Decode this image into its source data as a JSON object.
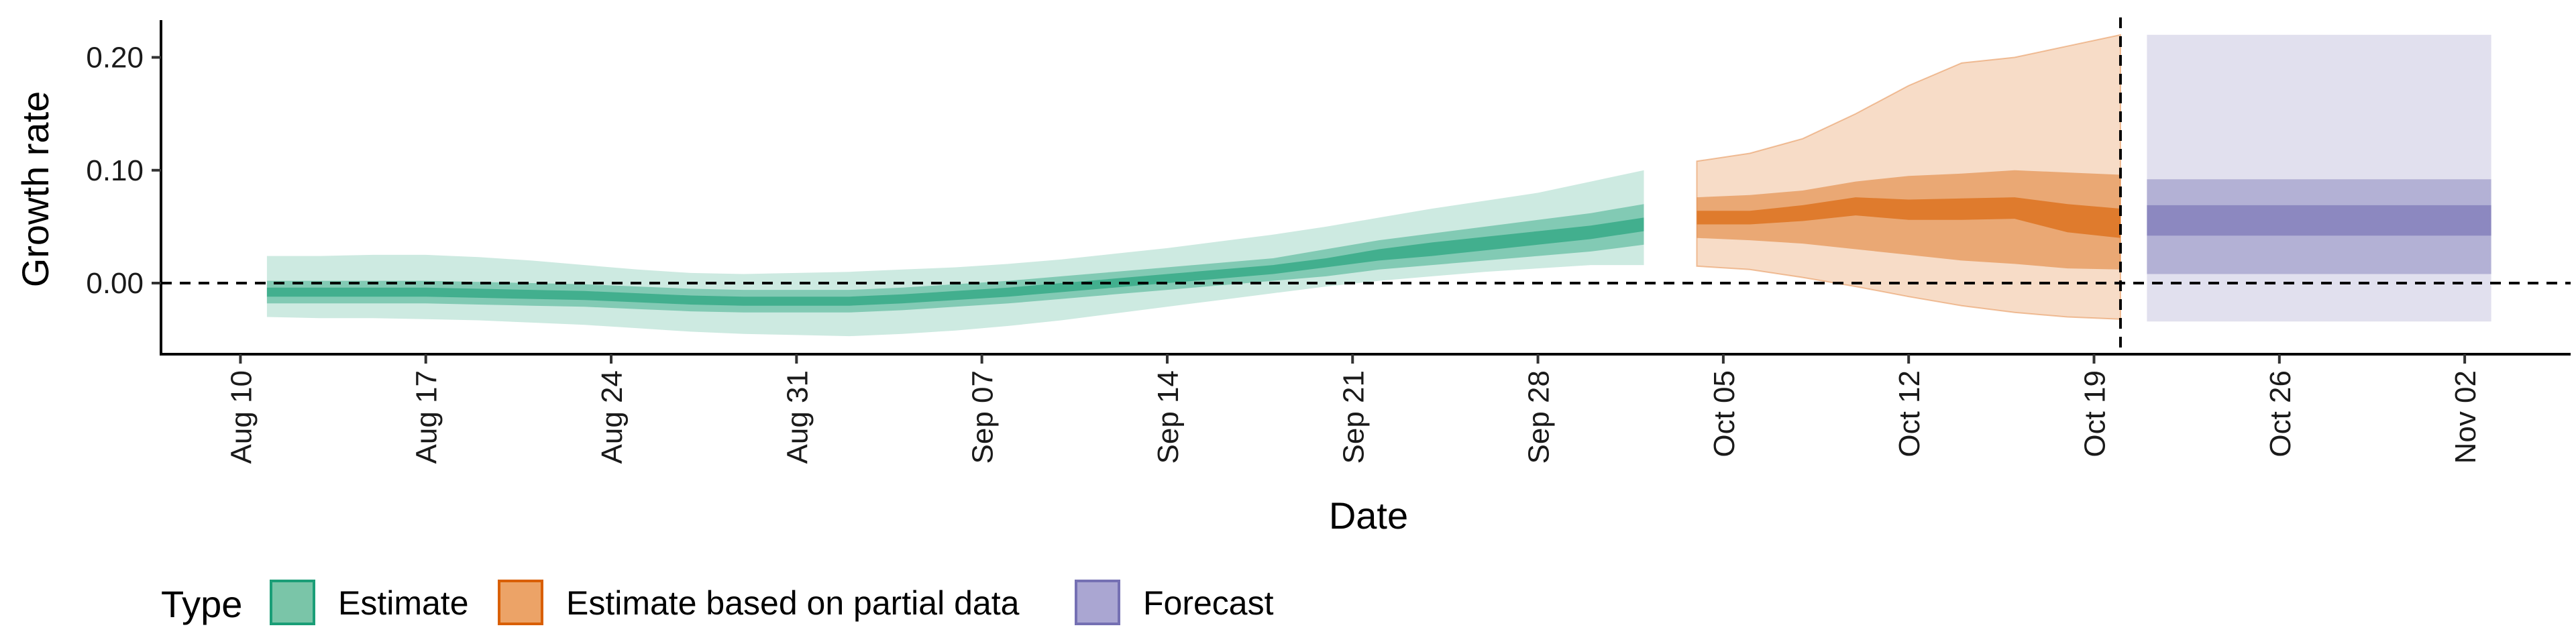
{
  "chart_data": {
    "type": "area",
    "xlabel": "Date",
    "ylabel": "Growth rate",
    "x_ticks": [
      "2020-08-10",
      "2020-08-17",
      "2020-08-24",
      "2020-08-31",
      "2020-09-07",
      "2020-09-14",
      "2020-09-21",
      "2020-09-28",
      "2020-10-05",
      "2020-10-12",
      "2020-10-19",
      "2020-10-26",
      "2020-11-02"
    ],
    "x_tick_labels": [
      "Aug 10",
      "Aug 17",
      "Aug 24",
      "Aug 31",
      "Sep 07",
      "Sep 14",
      "Sep 21",
      "Sep 28",
      "Oct 05",
      "Oct 12",
      "Oct 19",
      "Oct 26",
      "Nov 02"
    ],
    "xlim": [
      "2020-08-07",
      "2020-11-06"
    ],
    "y_ticks": [
      0.0,
      0.1,
      0.2
    ],
    "y_tick_labels": [
      "0.00",
      "0.10",
      "0.20"
    ],
    "ylim": [
      -0.063,
      0.233
    ],
    "reference_lines": {
      "y": 0,
      "x": "2020-10-20"
    },
    "legend": {
      "title": "Type",
      "position": "bottom-left",
      "items": [
        {
          "label": "Estimate",
          "fill": "#7ac5a8",
          "stroke": "#1b9e77"
        },
        {
          "label": "Estimate based on partial data",
          "fill": "#eca367",
          "stroke": "#d95f02"
        },
        {
          "label": "Forecast",
          "fill": "#aaa6d2",
          "stroke": "#7570b3"
        }
      ]
    },
    "series": [
      {
        "name": "Estimate",
        "color": "#1b9e77",
        "x": [
          "2020-08-11",
          "2020-08-13",
          "2020-08-15",
          "2020-08-17",
          "2020-08-19",
          "2020-08-21",
          "2020-08-23",
          "2020-08-25",
          "2020-08-27",
          "2020-08-29",
          "2020-08-31",
          "2020-09-02",
          "2020-09-04",
          "2020-09-06",
          "2020-09-08",
          "2020-09-10",
          "2020-09-12",
          "2020-09-14",
          "2020-09-16",
          "2020-09-18",
          "2020-09-20",
          "2020-09-22",
          "2020-09-24",
          "2020-09-26",
          "2020-09-28",
          "2020-09-30",
          "2020-10-02"
        ],
        "median": [
          -0.008,
          -0.008,
          -0.008,
          -0.008,
          -0.009,
          -0.01,
          -0.011,
          -0.013,
          -0.015,
          -0.016,
          -0.016,
          -0.016,
          -0.014,
          -0.011,
          -0.008,
          -0.004,
          0.0,
          0.004,
          0.008,
          0.012,
          0.018,
          0.025,
          0.03,
          0.035,
          0.04,
          0.045,
          0.052
        ],
        "low20": [
          -0.012,
          -0.012,
          -0.012,
          -0.012,
          -0.013,
          -0.014,
          -0.015,
          -0.017,
          -0.019,
          -0.02,
          -0.02,
          -0.02,
          -0.018,
          -0.015,
          -0.012,
          -0.008,
          -0.004,
          0.0,
          0.004,
          0.008,
          0.014,
          0.02,
          0.024,
          0.029,
          0.034,
          0.039,
          0.046
        ],
        "high20": [
          -0.004,
          -0.004,
          -0.004,
          -0.004,
          -0.005,
          -0.006,
          -0.007,
          -0.009,
          -0.011,
          -0.012,
          -0.012,
          -0.012,
          -0.01,
          -0.007,
          -0.004,
          0.0,
          0.004,
          0.008,
          0.012,
          0.016,
          0.022,
          0.03,
          0.036,
          0.041,
          0.046,
          0.051,
          0.058
        ],
        "low50": [
          -0.018,
          -0.018,
          -0.018,
          -0.018,
          -0.019,
          -0.02,
          -0.021,
          -0.023,
          -0.025,
          -0.026,
          -0.026,
          -0.026,
          -0.024,
          -0.021,
          -0.018,
          -0.014,
          -0.01,
          -0.006,
          -0.002,
          0.002,
          0.006,
          0.012,
          0.016,
          0.02,
          0.024,
          0.028,
          0.034
        ],
        "high50": [
          0.002,
          0.002,
          0.002,
          0.002,
          0.001,
          0.0,
          -0.001,
          -0.003,
          -0.005,
          -0.006,
          -0.006,
          -0.006,
          -0.004,
          -0.001,
          0.002,
          0.006,
          0.01,
          0.014,
          0.018,
          0.022,
          0.03,
          0.038,
          0.044,
          0.05,
          0.056,
          0.062,
          0.07
        ],
        "low90": [
          -0.03,
          -0.031,
          -0.031,
          -0.032,
          -0.033,
          -0.035,
          -0.037,
          -0.04,
          -0.043,
          -0.045,
          -0.046,
          -0.047,
          -0.045,
          -0.042,
          -0.038,
          -0.033,
          -0.027,
          -0.021,
          -0.015,
          -0.009,
          -0.003,
          0.002,
          0.006,
          0.01,
          0.013,
          0.016,
          0.016
        ],
        "high90": [
          0.024,
          0.024,
          0.025,
          0.025,
          0.023,
          0.02,
          0.016,
          0.012,
          0.009,
          0.008,
          0.009,
          0.01,
          0.012,
          0.014,
          0.017,
          0.021,
          0.026,
          0.031,
          0.037,
          0.043,
          0.05,
          0.058,
          0.066,
          0.073,
          0.08,
          0.09,
          0.1
        ]
      },
      {
        "name": "Estimate based on partial data",
        "color": "#d95f02",
        "x": [
          "2020-10-04",
          "2020-10-06",
          "2020-10-08",
          "2020-10-10",
          "2020-10-12",
          "2020-10-14",
          "2020-10-16",
          "2020-10-18",
          "2020-10-20"
        ],
        "median": [
          0.058,
          0.058,
          0.062,
          0.068,
          0.065,
          0.065,
          0.066,
          0.062,
          0.058
        ],
        "low20": [
          0.052,
          0.052,
          0.055,
          0.06,
          0.056,
          0.056,
          0.057,
          0.045,
          0.04
        ],
        "high20": [
          0.064,
          0.064,
          0.069,
          0.076,
          0.074,
          0.075,
          0.076,
          0.07,
          0.066
        ],
        "low50": [
          0.04,
          0.038,
          0.035,
          0.03,
          0.025,
          0.02,
          0.017,
          0.013,
          0.012
        ],
        "high50": [
          0.076,
          0.078,
          0.082,
          0.09,
          0.095,
          0.097,
          0.1,
          0.098,
          0.096
        ],
        "low90": [
          0.015,
          0.012,
          0.005,
          -0.003,
          -0.012,
          -0.02,
          -0.026,
          -0.03,
          -0.032
        ],
        "high90": [
          0.108,
          0.115,
          0.128,
          0.15,
          0.175,
          0.195,
          0.2,
          0.21,
          0.22
        ]
      },
      {
        "name": "Forecast",
        "color": "#7570b3",
        "x": [
          "2020-10-21",
          "2020-11-03"
        ],
        "median": [
          0.055,
          0.055
        ],
        "low20": [
          0.042,
          0.042
        ],
        "high20": [
          0.069,
          0.069
        ],
        "low50": [
          0.008,
          0.008
        ],
        "high50": [
          0.092,
          0.092
        ],
        "low90": [
          -0.034,
          -0.034
        ],
        "high90": [
          0.22,
          0.22
        ]
      }
    ]
  }
}
